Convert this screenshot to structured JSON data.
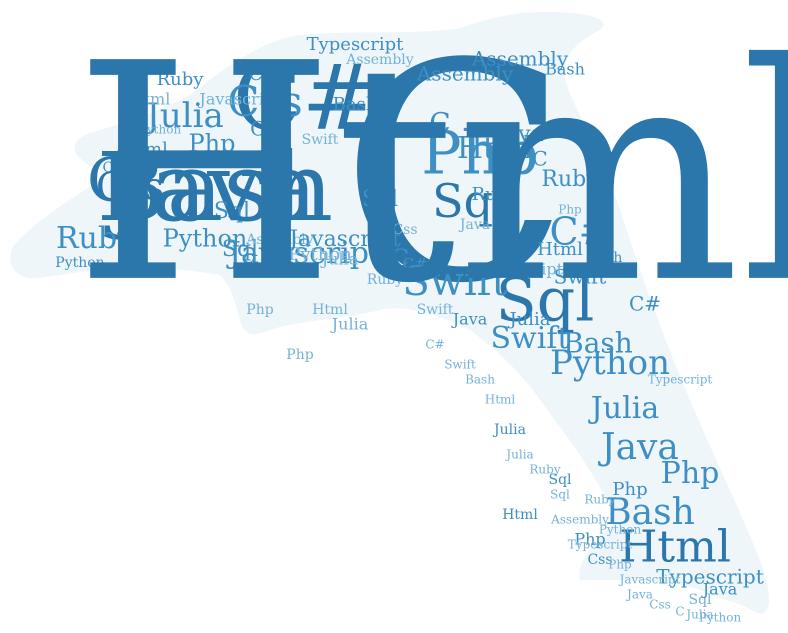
{
  "colors": {
    "shape_fill": "#eef6fa",
    "dark": "#2b76ab",
    "mid": "#3e8fc3",
    "light": "#74b2d8",
    "pale": "#a7cde6"
  },
  "words": [
    {
      "text": "C"
    },
    {
      "text": "Java"
    },
    {
      "text": "C#"
    },
    {
      "text": "Php"
    },
    {
      "text": "Sql"
    },
    {
      "text": "Css"
    },
    {
      "text": "Swift"
    },
    {
      "text": "Javascript"
    },
    {
      "text": "Html"
    },
    {
      "text": "Python"
    },
    {
      "text": "Bash"
    },
    {
      "text": "Julia"
    },
    {
      "text": "Ruby"
    },
    {
      "text": "Assembly"
    },
    {
      "text": "Typescript"
    },
    {
      "text": "Css"
    },
    {
      "text": "Julia"
    },
    {
      "text": "C"
    },
    {
      "text": "Php"
    },
    {
      "text": "Ruby"
    },
    {
      "text": "Python"
    },
    {
      "text": "Html"
    },
    {
      "text": "Sql"
    },
    {
      "text": "Sql"
    },
    {
      "text": "Java"
    },
    {
      "text": "Php"
    },
    {
      "text": "Bash"
    },
    {
      "text": "Assembly"
    },
    {
      "text": "Typescript"
    },
    {
      "text": "Javascript"
    },
    {
      "text": "Html"
    },
    {
      "text": "Css"
    },
    {
      "text": "Swift"
    },
    {
      "text": "Swift"
    },
    {
      "text": "Python"
    },
    {
      "text": "Julia"
    },
    {
      "text": "Html"
    },
    {
      "text": "Typescript"
    },
    {
      "text": "C#"
    },
    {
      "text": "C#"
    },
    {
      "text": "C"
    },
    {
      "text": "C"
    },
    {
      "text": "Ruby"
    },
    {
      "text": "Sql"
    },
    {
      "text": "Css"
    },
    {
      "text": "Php"
    },
    {
      "text": "Java"
    },
    {
      "text": "Bash"
    },
    {
      "text": "Julia"
    },
    {
      "text": "Html"
    },
    {
      "text": "Php"
    },
    {
      "text": "Python"
    },
    {
      "text": "Swift"
    },
    {
      "text": "Ruby"
    },
    {
      "text": "Assembly"
    },
    {
      "text": "Javascript"
    },
    {
      "text": "Java"
    },
    {
      "text": "Sql"
    },
    {
      "text": "Css"
    },
    {
      "text": "Bash"
    },
    {
      "text": "Julia"
    },
    {
      "text": "Php"
    },
    {
      "text": "Html"
    },
    {
      "text": "Ruby"
    },
    {
      "text": "Typescript"
    },
    {
      "text": "Assembly"
    },
    {
      "text": "Python"
    },
    {
      "text": "Swift"
    },
    {
      "text": "C#"
    },
    {
      "text": "Java"
    },
    {
      "text": "Sql"
    },
    {
      "text": "Julia"
    },
    {
      "text": "Bash"
    },
    {
      "text": "Php"
    },
    {
      "text": "C"
    },
    {
      "text": "Css"
    },
    {
      "text": "Html"
    },
    {
      "text": "Ruby"
    },
    {
      "text": "Javascript"
    },
    {
      "text": "Sql"
    },
    {
      "text": "Java"
    },
    {
      "text": "Php"
    },
    {
      "text": "Python"
    },
    {
      "text": "Css"
    },
    {
      "text": "C#"
    },
    {
      "text": "Swift"
    },
    {
      "text": "Bash"
    },
    {
      "text": "Html"
    },
    {
      "text": "Julia"
    },
    {
      "text": "Ruby"
    },
    {
      "text": "Sql"
    },
    {
      "text": "Assembly"
    },
    {
      "text": "Typescript"
    },
    {
      "text": "Php"
    },
    {
      "text": "Java"
    },
    {
      "text": "Css"
    },
    {
      "text": "C"
    },
    {
      "text": "Julia"
    },
    {
      "text": "Python"
    },
    {
      "text": "Html"
    },
    {
      "text": "Bash"
    }
  ]
}
